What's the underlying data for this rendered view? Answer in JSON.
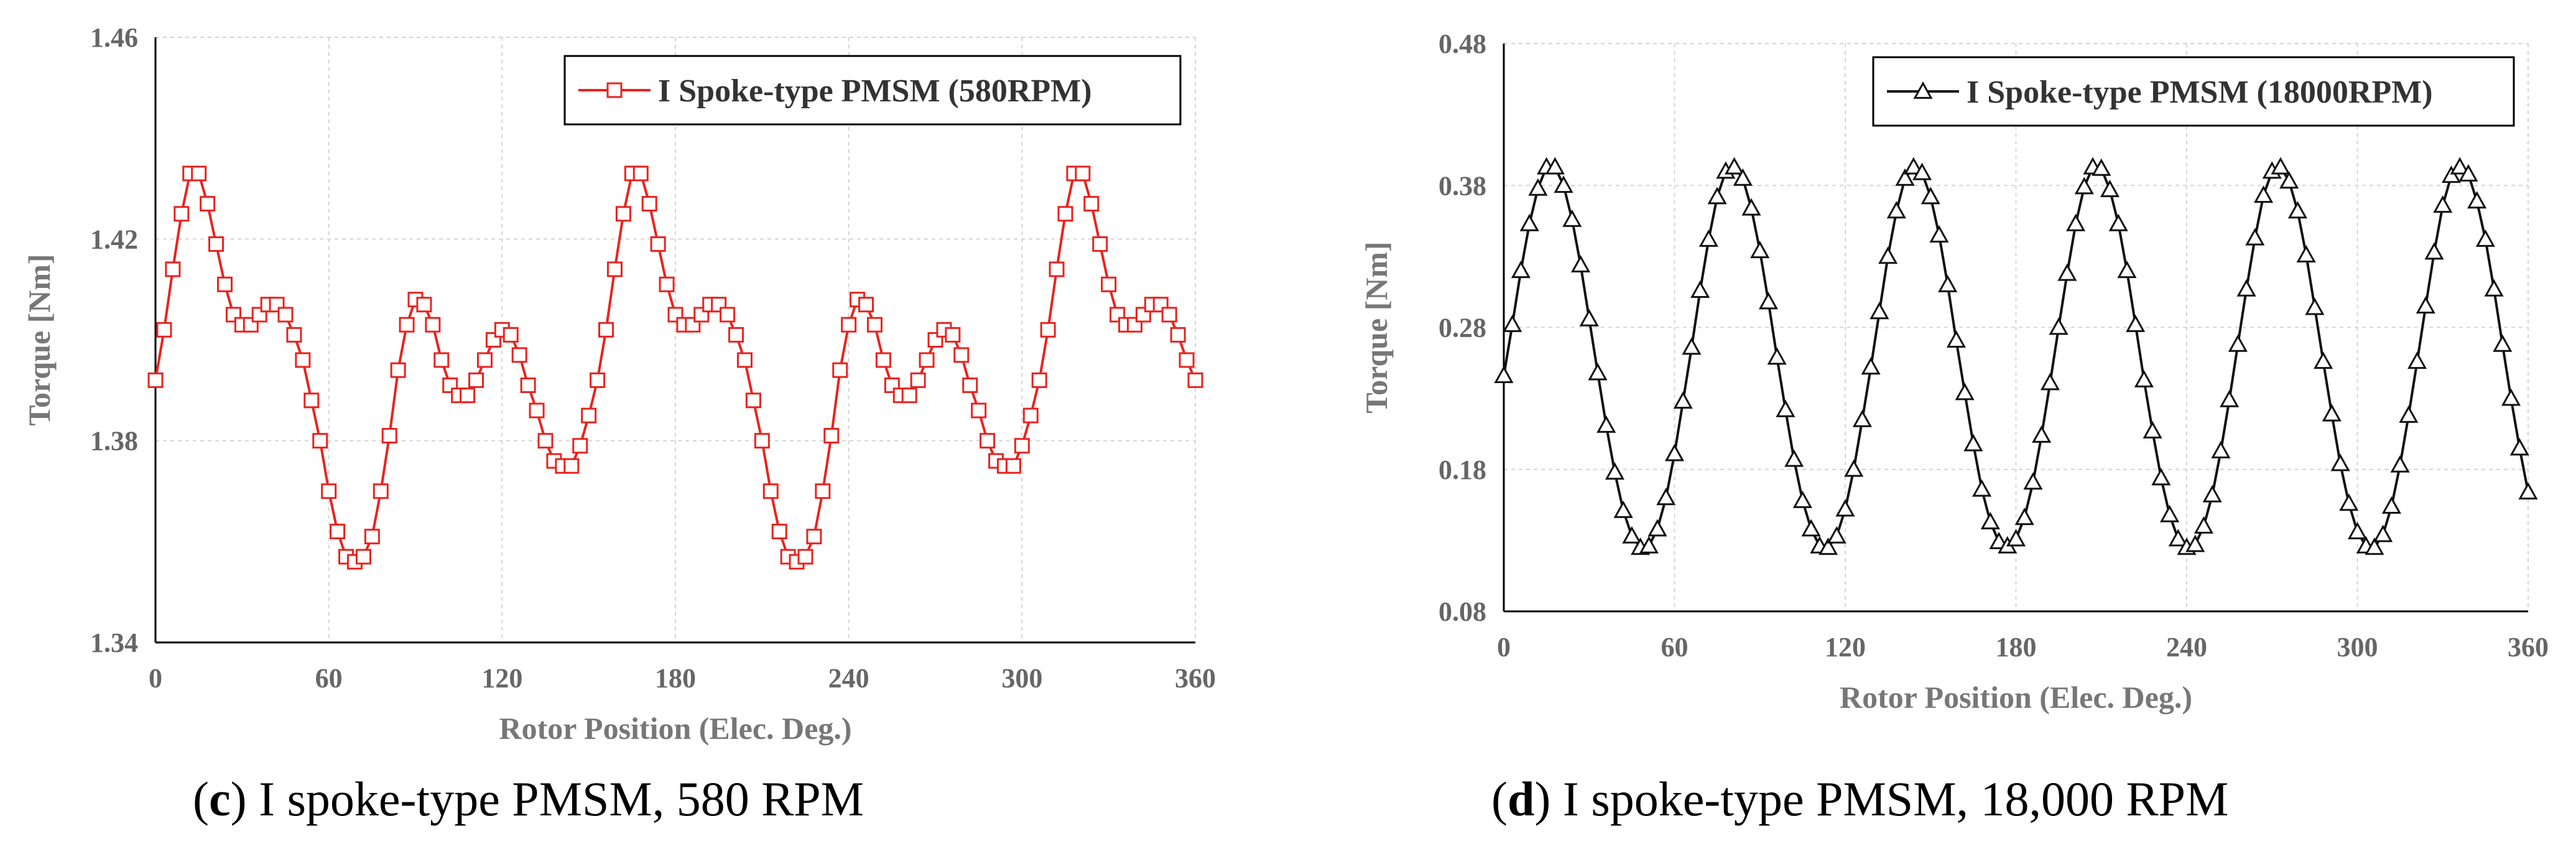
{
  "chart_data": [
    {
      "type": "line",
      "panel": "c",
      "caption_letter": "c",
      "caption_text": " I spoke-type PMSM, 580 RPM",
      "xlabel": "Rotor Position (Elec. Deg.)",
      "ylabel": "Torque  [Nm]",
      "xlim": [
        0,
        360
      ],
      "ylim": [
        1.34,
        1.46
      ],
      "xticks": [
        0,
        60,
        120,
        180,
        240,
        300,
        360
      ],
      "yticks": [
        1.34,
        1.38,
        1.42,
        1.46
      ],
      "ytick_labels": [
        "1.34",
        "1.38",
        "1.42",
        "1.46"
      ],
      "grid": true,
      "legend_position": "top-right",
      "marker": "square",
      "color": "#e8231f",
      "series": [
        {
          "name": "I Spoke-type PMSM (580RPM)",
          "x": [
            0,
            3,
            6,
            9,
            12,
            15,
            18,
            21,
            24,
            27,
            30,
            33,
            36,
            39,
            42,
            45,
            48,
            51,
            54,
            57,
            60,
            63,
            66,
            69,
            72,
            75,
            78,
            81,
            84,
            87,
            90,
            93,
            96,
            99,
            102,
            105,
            108,
            111,
            114,
            117,
            120,
            123,
            126,
            129,
            132,
            135,
            138,
            141,
            144,
            147,
            150,
            153,
            156,
            159,
            162,
            165,
            168,
            171,
            174,
            177,
            180,
            183,
            186,
            189,
            192,
            195,
            198,
            201,
            204,
            207,
            210,
            213,
            216,
            219,
            222,
            225,
            228,
            231,
            234,
            237,
            240,
            243,
            246,
            249,
            252,
            255,
            258,
            261,
            264,
            267,
            270,
            273,
            276,
            279,
            282,
            285,
            288,
            291,
            294,
            297,
            300,
            303,
            306,
            309,
            312,
            315,
            318,
            321,
            324,
            327,
            330,
            333,
            336,
            339,
            342,
            345,
            348,
            351,
            354,
            357,
            360
          ],
          "y": [
            1.392,
            1.402,
            1.414,
            1.425,
            1.433,
            1.433,
            1.427,
            1.419,
            1.411,
            1.405,
            1.403,
            1.403,
            1.405,
            1.407,
            1.407,
            1.405,
            1.401,
            1.396,
            1.388,
            1.38,
            1.37,
            1.362,
            1.357,
            1.356,
            1.357,
            1.361,
            1.37,
            1.381,
            1.394,
            1.403,
            1.408,
            1.407,
            1.403,
            1.396,
            1.391,
            1.389,
            1.389,
            1.392,
            1.396,
            1.4,
            1.402,
            1.401,
            1.397,
            1.391,
            1.386,
            1.38,
            1.376,
            1.375,
            1.375,
            1.379,
            1.385,
            1.392,
            1.402,
            1.414,
            1.425,
            1.433,
            1.433,
            1.427,
            1.419,
            1.411,
            1.405,
            1.403,
            1.403,
            1.405,
            1.407,
            1.407,
            1.405,
            1.401,
            1.396,
            1.388,
            1.38,
            1.37,
            1.362,
            1.357,
            1.356,
            1.357,
            1.361,
            1.37,
            1.381,
            1.394,
            1.403,
            1.408,
            1.407,
            1.403,
            1.396,
            1.391,
            1.389,
            1.389,
            1.392,
            1.396,
            1.4,
            1.402,
            1.401,
            1.397,
            1.391,
            1.386,
            1.38,
            1.376,
            1.375,
            1.375,
            1.379,
            1.385,
            1.392,
            1.402,
            1.414,
            1.425,
            1.433,
            1.433,
            1.427,
            1.419,
            1.411,
            1.405,
            1.403,
            1.403,
            1.405,
            1.407,
            1.407,
            1.405,
            1.401,
            1.396,
            1.392
          ]
        }
      ]
    },
    {
      "type": "line",
      "panel": "d",
      "caption_letter": "d",
      "caption_text": " I spoke-type PMSM, 18,000 RPM",
      "xlabel": "Rotor Position (Elec. Deg.)",
      "ylabel": "Torque [Nm]",
      "xlim": [
        0,
        360
      ],
      "ylim": [
        0.08,
        0.48
      ],
      "xticks": [
        0,
        60,
        120,
        180,
        240,
        300,
        360
      ],
      "yticks": [
        0.08,
        0.18,
        0.28,
        0.38,
        0.48
      ],
      "ytick_labels": [
        "0.08",
        "0.18",
        "0.28",
        "0.38",
        "0.48"
      ],
      "grid": true,
      "legend_position": "top-right",
      "marker": "triangle",
      "color": "#111111",
      "series": [
        {
          "name": "I Spoke-type PMSM (18000RPM)",
          "x": [
            0,
            3,
            6,
            9,
            12,
            15,
            18,
            21,
            24,
            27,
            30,
            33,
            36,
            39,
            42,
            45,
            48,
            51,
            54,
            57,
            60,
            63,
            66,
            69,
            72,
            75,
            78,
            81,
            84,
            87,
            90,
            93,
            96,
            99,
            102,
            105,
            108,
            111,
            114,
            117,
            120,
            123,
            126,
            129,
            132,
            135,
            138,
            141,
            144,
            147,
            150,
            153,
            156,
            159,
            162,
            165,
            168,
            171,
            174,
            177,
            180,
            183,
            186,
            189,
            192,
            195,
            198,
            201,
            204,
            207,
            210,
            213,
            216,
            219,
            222,
            225,
            228,
            231,
            234,
            237,
            240,
            243,
            246,
            249,
            252,
            255,
            258,
            261,
            264,
            267,
            270,
            273,
            276,
            279,
            282,
            285,
            288,
            291,
            294,
            297,
            300,
            303,
            306,
            309,
            312,
            315,
            318,
            321,
            324,
            327,
            330,
            333,
            336,
            339,
            342,
            345,
            348,
            351,
            354,
            357,
            360
          ],
          "y": [
            0.246,
            0.282,
            0.32,
            0.353,
            0.378,
            0.393,
            0.393,
            0.38,
            0.356,
            0.324,
            0.286,
            0.248,
            0.211,
            0.178,
            0.151,
            0.133,
            0.125,
            0.126,
            0.138,
            0.16,
            0.191,
            0.228,
            0.266,
            0.306,
            0.342,
            0.372,
            0.39,
            0.393,
            0.385,
            0.364,
            0.334,
            0.298,
            0.259,
            0.222,
            0.187,
            0.158,
            0.138,
            0.126,
            0.125,
            0.133,
            0.152,
            0.18,
            0.215,
            0.252,
            0.291,
            0.33,
            0.362,
            0.385,
            0.393,
            0.389,
            0.372,
            0.345,
            0.31,
            0.271,
            0.234,
            0.198,
            0.166,
            0.143,
            0.129,
            0.126,
            0.131,
            0.146,
            0.171,
            0.204,
            0.241,
            0.28,
            0.318,
            0.353,
            0.379,
            0.393,
            0.392,
            0.377,
            0.353,
            0.32,
            0.282,
            0.243,
            0.207,
            0.174,
            0.148,
            0.131,
            0.125,
            0.127,
            0.14,
            0.162,
            0.193,
            0.229,
            0.268,
            0.307,
            0.343,
            0.373,
            0.39,
            0.393,
            0.383,
            0.362,
            0.331,
            0.294,
            0.256,
            0.219,
            0.184,
            0.156,
            0.136,
            0.126,
            0.125,
            0.134,
            0.154,
            0.183,
            0.218,
            0.256,
            0.295,
            0.333,
            0.366,
            0.387,
            0.393,
            0.388,
            0.369,
            0.342,
            0.307,
            0.268,
            0.23,
            0.195,
            0.164
          ]
        }
      ]
    }
  ]
}
